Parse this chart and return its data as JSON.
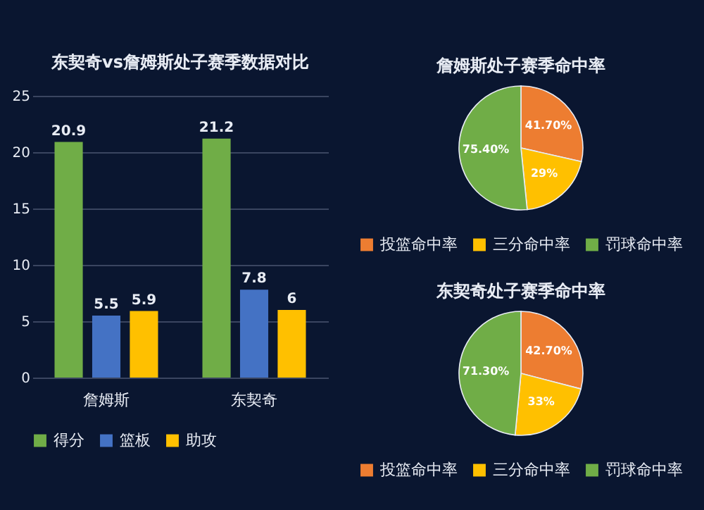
{
  "chart_data": [
    {
      "type": "bar",
      "title": "东契奇vs詹姆斯处子赛季数据对比",
      "categories": [
        "詹姆斯",
        "东契奇"
      ],
      "series": [
        {
          "name": "得分",
          "color": "#70ad47",
          "values": [
            20.9,
            21.2
          ]
        },
        {
          "name": "篮板",
          "color": "#4472c4",
          "values": [
            5.5,
            7.8
          ]
        },
        {
          "name": "助攻",
          "color": "#ffc000",
          "values": [
            5.9,
            6
          ]
        }
      ],
      "ylim": [
        0,
        25
      ],
      "yticks": [
        0,
        5,
        10,
        15,
        20,
        25
      ],
      "grid": "y",
      "legend": "bottom",
      "data_labels": true
    },
    {
      "type": "pie",
      "title": "詹姆斯处子赛季命中率",
      "categories": [
        "投篮命中率",
        "三分命中率",
        "罚球命中率"
      ],
      "values": [
        41.7,
        29,
        75.4
      ],
      "value_labels": [
        "41.70%",
        "29%",
        "75.40%"
      ],
      "colors": [
        "#ed7d31",
        "#ffc000",
        "#70ad47"
      ],
      "legend": "bottom"
    },
    {
      "type": "pie",
      "title": "东契奇处子赛季命中率",
      "categories": [
        "投篮命中率",
        "三分命中率",
        "罚球命中率"
      ],
      "values": [
        42.7,
        33,
        71.3
      ],
      "value_labels": [
        "42.70%",
        "33%",
        "71.30%"
      ],
      "colors": [
        "#ed7d31",
        "#ffc000",
        "#70ad47"
      ],
      "legend": "bottom"
    }
  ]
}
